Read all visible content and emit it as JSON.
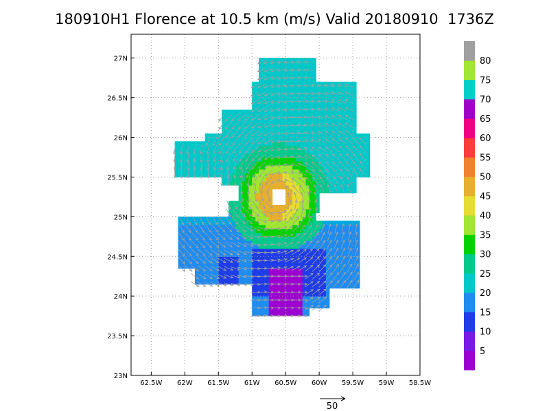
{
  "title": "180910H1 Florence at 10.5 km (m/s) Valid 20180910  1736Z",
  "map": {
    "lon_range": [
      -62.8,
      -58.5
    ],
    "lat_range": [
      23.0,
      27.3
    ],
    "x_ticks": [
      {
        "value": -62.5,
        "label": "62.5W"
      },
      {
        "value": -62.0,
        "label": "62W"
      },
      {
        "value": -61.5,
        "label": "61.5W"
      },
      {
        "value": -61.0,
        "label": "61W"
      },
      {
        "value": -60.5,
        "label": "60.5W"
      },
      {
        "value": -60.0,
        "label": "60W"
      },
      {
        "value": -59.5,
        "label": "59.5W"
      },
      {
        "value": -59.0,
        "label": "59W"
      },
      {
        "value": -58.5,
        "label": "58.5W"
      }
    ],
    "y_ticks": [
      {
        "value": 23.0,
        "label": "23N"
      },
      {
        "value": 23.5,
        "label": "23.5N"
      },
      {
        "value": 24.0,
        "label": "24N"
      },
      {
        "value": 24.5,
        "label": "24.5N"
      },
      {
        "value": 25.0,
        "label": "25N"
      },
      {
        "value": 25.5,
        "label": "25.5N"
      },
      {
        "value": 26.0,
        "label": "26N"
      },
      {
        "value": 26.5,
        "label": "26.5N"
      },
      {
        "value": 27.0,
        "label": "27N"
      }
    ],
    "grid": "dotted",
    "storm_center": {
      "lon": -60.6,
      "lat": 25.25
    }
  },
  "colorbar": {
    "units": "m/s",
    "levels": [
      {
        "label": "5",
        "color": "#9c00d0"
      },
      {
        "label": "10",
        "color": "#7a18e8"
      },
      {
        "label": "15",
        "color": "#1e3ce8"
      },
      {
        "label": "20",
        "color": "#1e8cf0"
      },
      {
        "label": "25",
        "color": "#00c8c8"
      },
      {
        "label": "30",
        "color": "#00c98c"
      },
      {
        "label": "35",
        "color": "#00d200"
      },
      {
        "label": "40",
        "color": "#a0e632"
      },
      {
        "label": "45",
        "color": "#e6dc32"
      },
      {
        "label": "50",
        "color": "#e6af2d"
      },
      {
        "label": "55",
        "color": "#f0822d"
      },
      {
        "label": "60",
        "color": "#fa3c3c"
      },
      {
        "label": "65",
        "color": "#f00082"
      },
      {
        "label": "70",
        "color": "#a000c8"
      },
      {
        "label": "75",
        "color": "#00d0c8"
      },
      {
        "label": "80",
        "color": "#a0e632"
      },
      {
        "label": "",
        "color": "#a0a0a0"
      }
    ]
  },
  "vector_scale": {
    "label": "50"
  },
  "vector_color": "#a0a0a0"
}
